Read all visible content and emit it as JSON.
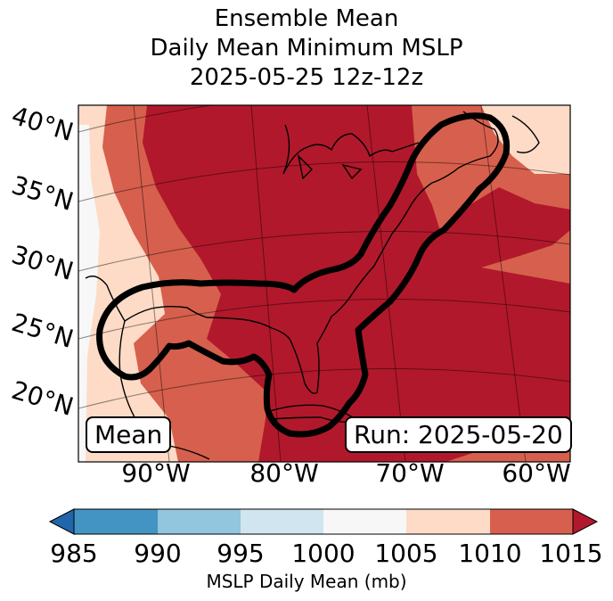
{
  "title": {
    "line1": "Ensemble Mean",
    "line2": "Daily Mean Minimum MSLP",
    "line3": "2025-05-25 12z-12z"
  },
  "lat_labels": [
    "40°N",
    "35°N",
    "30°N",
    "25°N",
    "20°N"
  ],
  "lon_labels": [
    "90°W",
    "80°W",
    "70°W",
    "60°W"
  ],
  "left_box": "Mean",
  "right_box": "Run: 2025-05-20",
  "colorbar": {
    "label": "MSLP Daily Mean (mb)",
    "ticks": [
      "985",
      "990",
      "995",
      "1000",
      "1005",
      "1010",
      "1015"
    ],
    "colors": {
      "under": "#2166ac",
      "985-990": "#4393c3",
      "990-995": "#92c5de",
      "995-1000": "#d1e5f0",
      "1000-1005": "#f7f7f7",
      "1005-1010": "#fddbc7",
      "1010-1015": "#d6604d",
      "over": "#b2182b"
    }
  }
}
